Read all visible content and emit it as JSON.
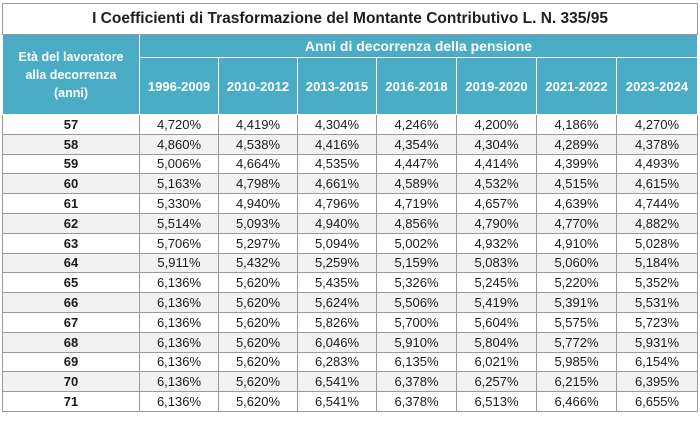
{
  "title": "I Coefficienti di Trasformazione del Montante Contributivo L. N. 335/95",
  "header": {
    "age_label_line1": "Età del lavoratore",
    "age_label_line2": "alla decorrenza",
    "age_label_line3": "(anni)",
    "years_label": "Anni di decorrenza della pensione",
    "periods": [
      "1996-2009",
      "2010-2012",
      "2013-2015",
      "2016-2018",
      "2019-2020",
      "2021-2022",
      "2023-2024"
    ]
  },
  "rows": [
    {
      "age": "57",
      "values": [
        "4,720%",
        "4,419%",
        "4,304%",
        "4,246%",
        "4,200%",
        "4,186%",
        "4,270%"
      ]
    },
    {
      "age": "58",
      "values": [
        "4,860%",
        "4,538%",
        "4,416%",
        "4,354%",
        "4,304%",
        "4,289%",
        "4,378%"
      ]
    },
    {
      "age": "59",
      "values": [
        "5,006%",
        "4,664%",
        "4,535%",
        "4,447%",
        "4,414%",
        "4,399%",
        "4,493%"
      ]
    },
    {
      "age": "60",
      "values": [
        "5,163%",
        "4,798%",
        "4,661%",
        "4,589%",
        "4,532%",
        "4,515%",
        "4,615%"
      ]
    },
    {
      "age": "61",
      "values": [
        "5,330%",
        "4,940%",
        "4,796%",
        "4,719%",
        "4,657%",
        "4,639%",
        "4,744%"
      ]
    },
    {
      "age": "62",
      "values": [
        "5,514%",
        "5,093%",
        "4,940%",
        "4,856%",
        "4,790%",
        "4,770%",
        "4,882%"
      ]
    },
    {
      "age": "63",
      "values": [
        "5,706%",
        "5,297%",
        "5,094%",
        "5,002%",
        "4,932%",
        "4,910%",
        "5,028%"
      ]
    },
    {
      "age": "64",
      "values": [
        "5,911%",
        "5,432%",
        "5,259%",
        "5,159%",
        "5,083%",
        "5,060%",
        "5,184%"
      ]
    },
    {
      "age": "65",
      "values": [
        "6,136%",
        "5,620%",
        "5,435%",
        "5,326%",
        "5,245%",
        "5,220%",
        "5,352%"
      ]
    },
    {
      "age": "66",
      "values": [
        "6,136%",
        "5,620%",
        "5,624%",
        "5,506%",
        "5,419%",
        "5,391%",
        "5,531%"
      ]
    },
    {
      "age": "67",
      "values": [
        "6,136%",
        "5,620%",
        "5,826%",
        "5,700%",
        "5,604%",
        "5,575%",
        "5,723%"
      ]
    },
    {
      "age": "68",
      "values": [
        "6,136%",
        "5,620%",
        "6,046%",
        "5,910%",
        "5,804%",
        "5,772%",
        "5,931%"
      ]
    },
    {
      "age": "69",
      "values": [
        "6,136%",
        "5,620%",
        "6,283%",
        "6,135%",
        "6,021%",
        "5,985%",
        "6,154%"
      ]
    },
    {
      "age": "70",
      "values": [
        "6,136%",
        "5,620%",
        "6,541%",
        "6,378%",
        "6,257%",
        "6,215%",
        "6,395%"
      ]
    },
    {
      "age": "71",
      "values": [
        "6,136%",
        "5,620%",
        "6,541%",
        "6,378%",
        "6,513%",
        "6,466%",
        "6,655%"
      ]
    }
  ],
  "colors": {
    "header_bg": "#4bacc6",
    "header_text": "#ffffff",
    "row_alt": "#f2f2f2"
  }
}
